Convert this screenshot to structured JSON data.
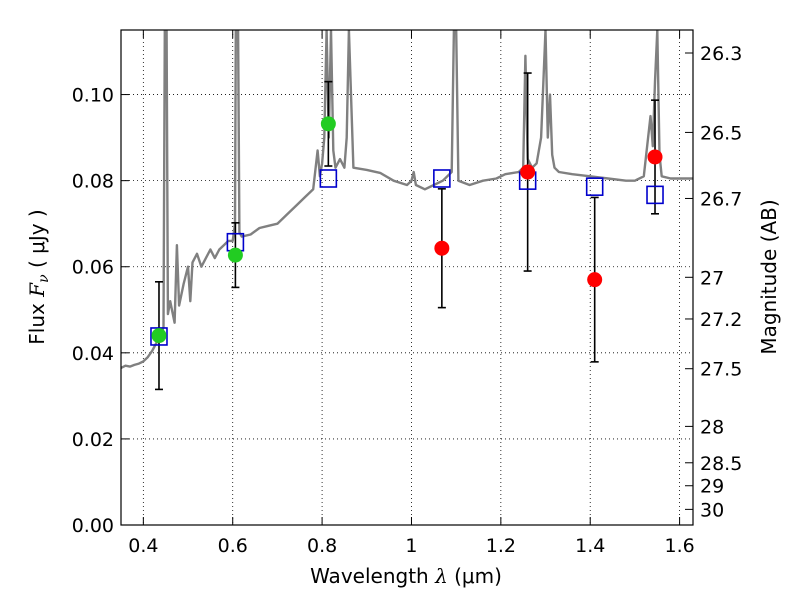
{
  "chart_data": {
    "type": "scatter",
    "title": "",
    "xlabel": {
      "prefix": "Wavelength  ",
      "symbol": "λ",
      "unit": " (μm)"
    },
    "ylabel": {
      "prefix": "Flux  ",
      "symbol": "F",
      "subscript": "ν",
      "unit": "  ( μJy )"
    },
    "ylabel_right": "Magnitude (AB)",
    "xlim": [
      0.35,
      1.63
    ],
    "ylim": [
      0.0,
      0.115
    ],
    "x_ticks": [
      0.4,
      0.6,
      0.8,
      1.0,
      1.2,
      1.4,
      1.6
    ],
    "x_tick_labels": [
      "0.4",
      "0.6",
      "0.8",
      "1",
      "1.2",
      "1.4",
      "1.6"
    ],
    "y_ticks": [
      0.0,
      0.02,
      0.04,
      0.06,
      0.08,
      0.1
    ],
    "y_tick_labels": [
      "0.00",
      "0.02",
      "0.04",
      "0.06",
      "0.08",
      "0.10"
    ],
    "right_ticks": [
      {
        "label": "26.3",
        "mag": 26.3
      },
      {
        "label": "26.5",
        "mag": 26.5
      },
      {
        "label": "26.7",
        "mag": 26.7
      },
      {
        "label": "27",
        "mag": 27.0
      },
      {
        "label": "27.2",
        "mag": 27.2
      },
      {
        "label": "27.5",
        "mag": 27.5
      },
      {
        "label": "28",
        "mag": 28.0
      },
      {
        "label": "28.5",
        "mag": 28.5
      },
      {
        "label": "29",
        "mag": 29.0
      },
      {
        "label": "30",
        "mag": 30.0
      }
    ],
    "grid": "dotted",
    "colors": {
      "model": "#808080",
      "detections": "#22cc22",
      "measurements": "#ff0000",
      "model_photometry": "#0000cc",
      "error_bars": "#000000"
    },
    "series": [
      {
        "name": "model spectrum",
        "kind": "line",
        "points": [
          [
            0.35,
            0.0365
          ],
          [
            0.36,
            0.037
          ],
          [
            0.37,
            0.0368
          ],
          [
            0.38,
            0.0372
          ],
          [
            0.39,
            0.0375
          ],
          [
            0.4,
            0.038
          ],
          [
            0.41,
            0.039
          ],
          [
            0.42,
            0.0405
          ],
          [
            0.43,
            0.0425
          ],
          [
            0.44,
            0.044
          ],
          [
            0.445,
            0.046
          ],
          [
            0.448,
            0.115
          ],
          [
            0.452,
            0.115
          ],
          [
            0.455,
            0.049
          ],
          [
            0.46,
            0.052
          ],
          [
            0.47,
            0.047
          ],
          [
            0.475,
            0.065
          ],
          [
            0.48,
            0.051
          ],
          [
            0.49,
            0.056
          ],
          [
            0.5,
            0.06
          ],
          [
            0.505,
            0.052
          ],
          [
            0.51,
            0.061
          ],
          [
            0.52,
            0.063
          ],
          [
            0.53,
            0.06
          ],
          [
            0.54,
            0.062
          ],
          [
            0.55,
            0.064
          ],
          [
            0.56,
            0.062
          ],
          [
            0.57,
            0.064
          ],
          [
            0.58,
            0.065
          ],
          [
            0.59,
            0.066
          ],
          [
            0.6,
            0.066
          ],
          [
            0.605,
            0.07
          ],
          [
            0.607,
            0.115
          ],
          [
            0.612,
            0.115
          ],
          [
            0.615,
            0.068
          ],
          [
            0.62,
            0.067
          ],
          [
            0.64,
            0.0675
          ],
          [
            0.66,
            0.069
          ],
          [
            0.68,
            0.0695
          ],
          [
            0.7,
            0.07
          ],
          [
            0.72,
            0.072
          ],
          [
            0.74,
            0.074
          ],
          [
            0.76,
            0.076
          ],
          [
            0.78,
            0.078
          ],
          [
            0.79,
            0.087
          ],
          [
            0.795,
            0.081
          ],
          [
            0.8,
            0.084
          ],
          [
            0.805,
            0.09
          ],
          [
            0.81,
            0.115
          ],
          [
            0.815,
            0.09
          ],
          [
            0.82,
            0.115
          ],
          [
            0.825,
            0.087
          ],
          [
            0.83,
            0.083
          ],
          [
            0.84,
            0.085
          ],
          [
            0.85,
            0.083
          ],
          [
            0.855,
            0.09
          ],
          [
            0.86,
            0.115
          ],
          [
            0.87,
            0.083
          ],
          [
            0.9,
            0.0825
          ],
          [
            0.93,
            0.0818
          ],
          [
            0.96,
            0.08
          ],
          [
            0.99,
            0.079
          ],
          [
            1.0,
            0.08
          ],
          [
            1.005,
            0.082
          ],
          [
            1.01,
            0.079
          ],
          [
            1.03,
            0.078
          ],
          [
            1.05,
            0.079
          ],
          [
            1.07,
            0.08
          ],
          [
            1.09,
            0.082
          ],
          [
            1.095,
            0.115
          ],
          [
            1.1,
            0.115
          ],
          [
            1.105,
            0.08
          ],
          [
            1.13,
            0.079
          ],
          [
            1.16,
            0.08
          ],
          [
            1.19,
            0.0805
          ],
          [
            1.21,
            0.0815
          ],
          [
            1.24,
            0.082
          ],
          [
            1.25,
            0.083
          ],
          [
            1.255,
            0.109
          ],
          [
            1.26,
            0.085
          ],
          [
            1.27,
            0.083
          ],
          [
            1.28,
            0.084
          ],
          [
            1.29,
            0.09
          ],
          [
            1.3,
            0.115
          ],
          [
            1.305,
            0.09
          ],
          [
            1.31,
            0.1
          ],
          [
            1.315,
            0.086
          ],
          [
            1.32,
            0.083
          ],
          [
            1.33,
            0.082
          ],
          [
            1.36,
            0.0815
          ],
          [
            1.4,
            0.081
          ],
          [
            1.44,
            0.0805
          ],
          [
            1.48,
            0.08
          ],
          [
            1.5,
            0.08
          ],
          [
            1.52,
            0.081
          ],
          [
            1.535,
            0.095
          ],
          [
            1.54,
            0.088
          ],
          [
            1.545,
            0.103
          ],
          [
            1.55,
            0.115
          ],
          [
            1.555,
            0.086
          ],
          [
            1.56,
            0.081
          ],
          [
            1.58,
            0.0805
          ],
          [
            1.6,
            0.0805
          ],
          [
            1.63,
            0.0805
          ]
        ]
      },
      {
        "name": "detections",
        "kind": "points",
        "marker": "circle",
        "points": [
          {
            "x": 0.435,
            "y": 0.044,
            "yerr": 0.0125
          },
          {
            "x": 0.606,
            "y": 0.0627,
            "yerr": 0.0075
          },
          {
            "x": 0.814,
            "y": 0.0932,
            "yerr": 0.0098
          }
        ]
      },
      {
        "name": "measurements",
        "kind": "points",
        "marker": "circle",
        "points": [
          {
            "x": 1.068,
            "y": 0.0643,
            "yerr": 0.0138
          },
          {
            "x": 1.26,
            "y": 0.082,
            "yerr": 0.023
          },
          {
            "x": 1.41,
            "y": 0.057,
            "yerr": 0.0191
          },
          {
            "x": 1.545,
            "y": 0.0855,
            "yerr": 0.0132
          }
        ]
      },
      {
        "name": "model photometry",
        "kind": "points",
        "marker": "square",
        "points": [
          {
            "x": 0.435,
            "y": 0.0438
          },
          {
            "x": 0.606,
            "y": 0.0657
          },
          {
            "x": 0.814,
            "y": 0.0805
          },
          {
            "x": 1.068,
            "y": 0.0805
          },
          {
            "x": 1.26,
            "y": 0.08
          },
          {
            "x": 1.41,
            "y": 0.0786
          },
          {
            "x": 1.545,
            "y": 0.0767
          }
        ]
      }
    ]
  }
}
